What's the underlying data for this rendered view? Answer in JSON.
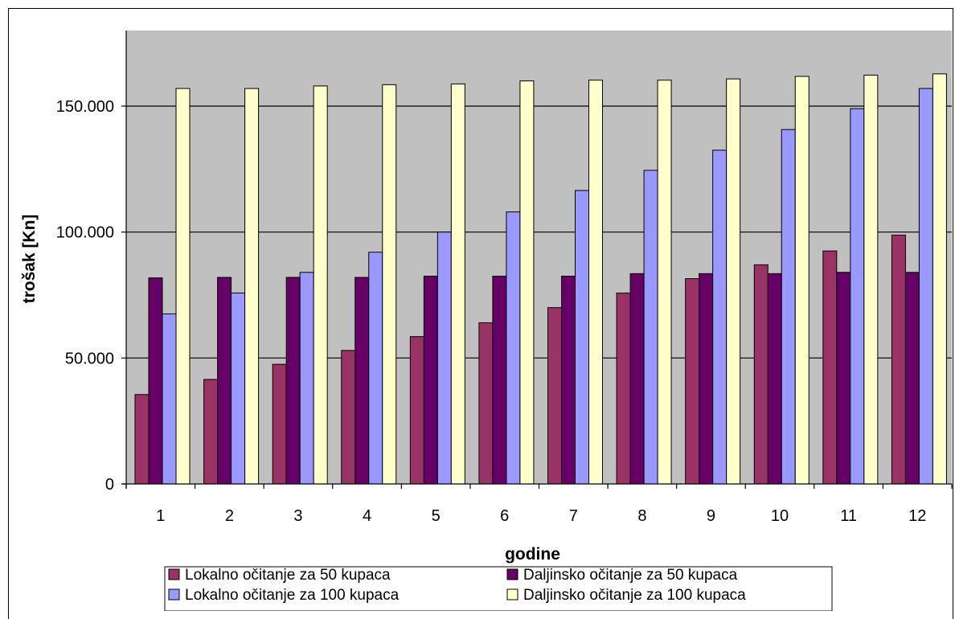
{
  "chart_data": {
    "type": "bar",
    "categories": [
      "1",
      "2",
      "3",
      "4",
      "5",
      "6",
      "7",
      "8",
      "9",
      "10",
      "11",
      "12"
    ],
    "series": [
      {
        "name": "Lokalno očitanje za 50 kupaca",
        "color": "#993366",
        "values": [
          35500,
          41500,
          47500,
          53000,
          58500,
          64000,
          70000,
          75800,
          81500,
          87000,
          92500,
          98800
        ]
      },
      {
        "name": "Daljinsko očitanje za 50 kupaca",
        "color": "#660066",
        "values": [
          81800,
          82000,
          82000,
          82000,
          82500,
          82500,
          82500,
          83500,
          83500,
          83500,
          84000,
          84000
        ]
      },
      {
        "name": "Lokalno očitanje za 100 kupaca",
        "color": "#9999ff",
        "values": [
          67500,
          75800,
          84000,
          92000,
          100000,
          108000,
          116500,
          124500,
          132500,
          140700,
          149000,
          157000
        ]
      },
      {
        "name": "Daljinsko očitanje za 100 kupaca",
        "color": "#ffffcc",
        "values": [
          157000,
          157000,
          158000,
          158500,
          158800,
          160000,
          160300,
          160300,
          160800,
          161800,
          162300,
          162800
        ]
      }
    ],
    "ylim": [
      0,
      180000
    ],
    "yticks": [
      0,
      50000,
      100000,
      150000
    ],
    "ytick_labels": [
      "0",
      "50.000",
      "100.000",
      "150.000"
    ],
    "gridlines": [
      50000,
      100000,
      150000
    ],
    "xlabel": "godine",
    "ylabel": "trošak [Kn]",
    "plot_background": "#c0c0c0",
    "legend_position": "bottom",
    "grid": true
  }
}
